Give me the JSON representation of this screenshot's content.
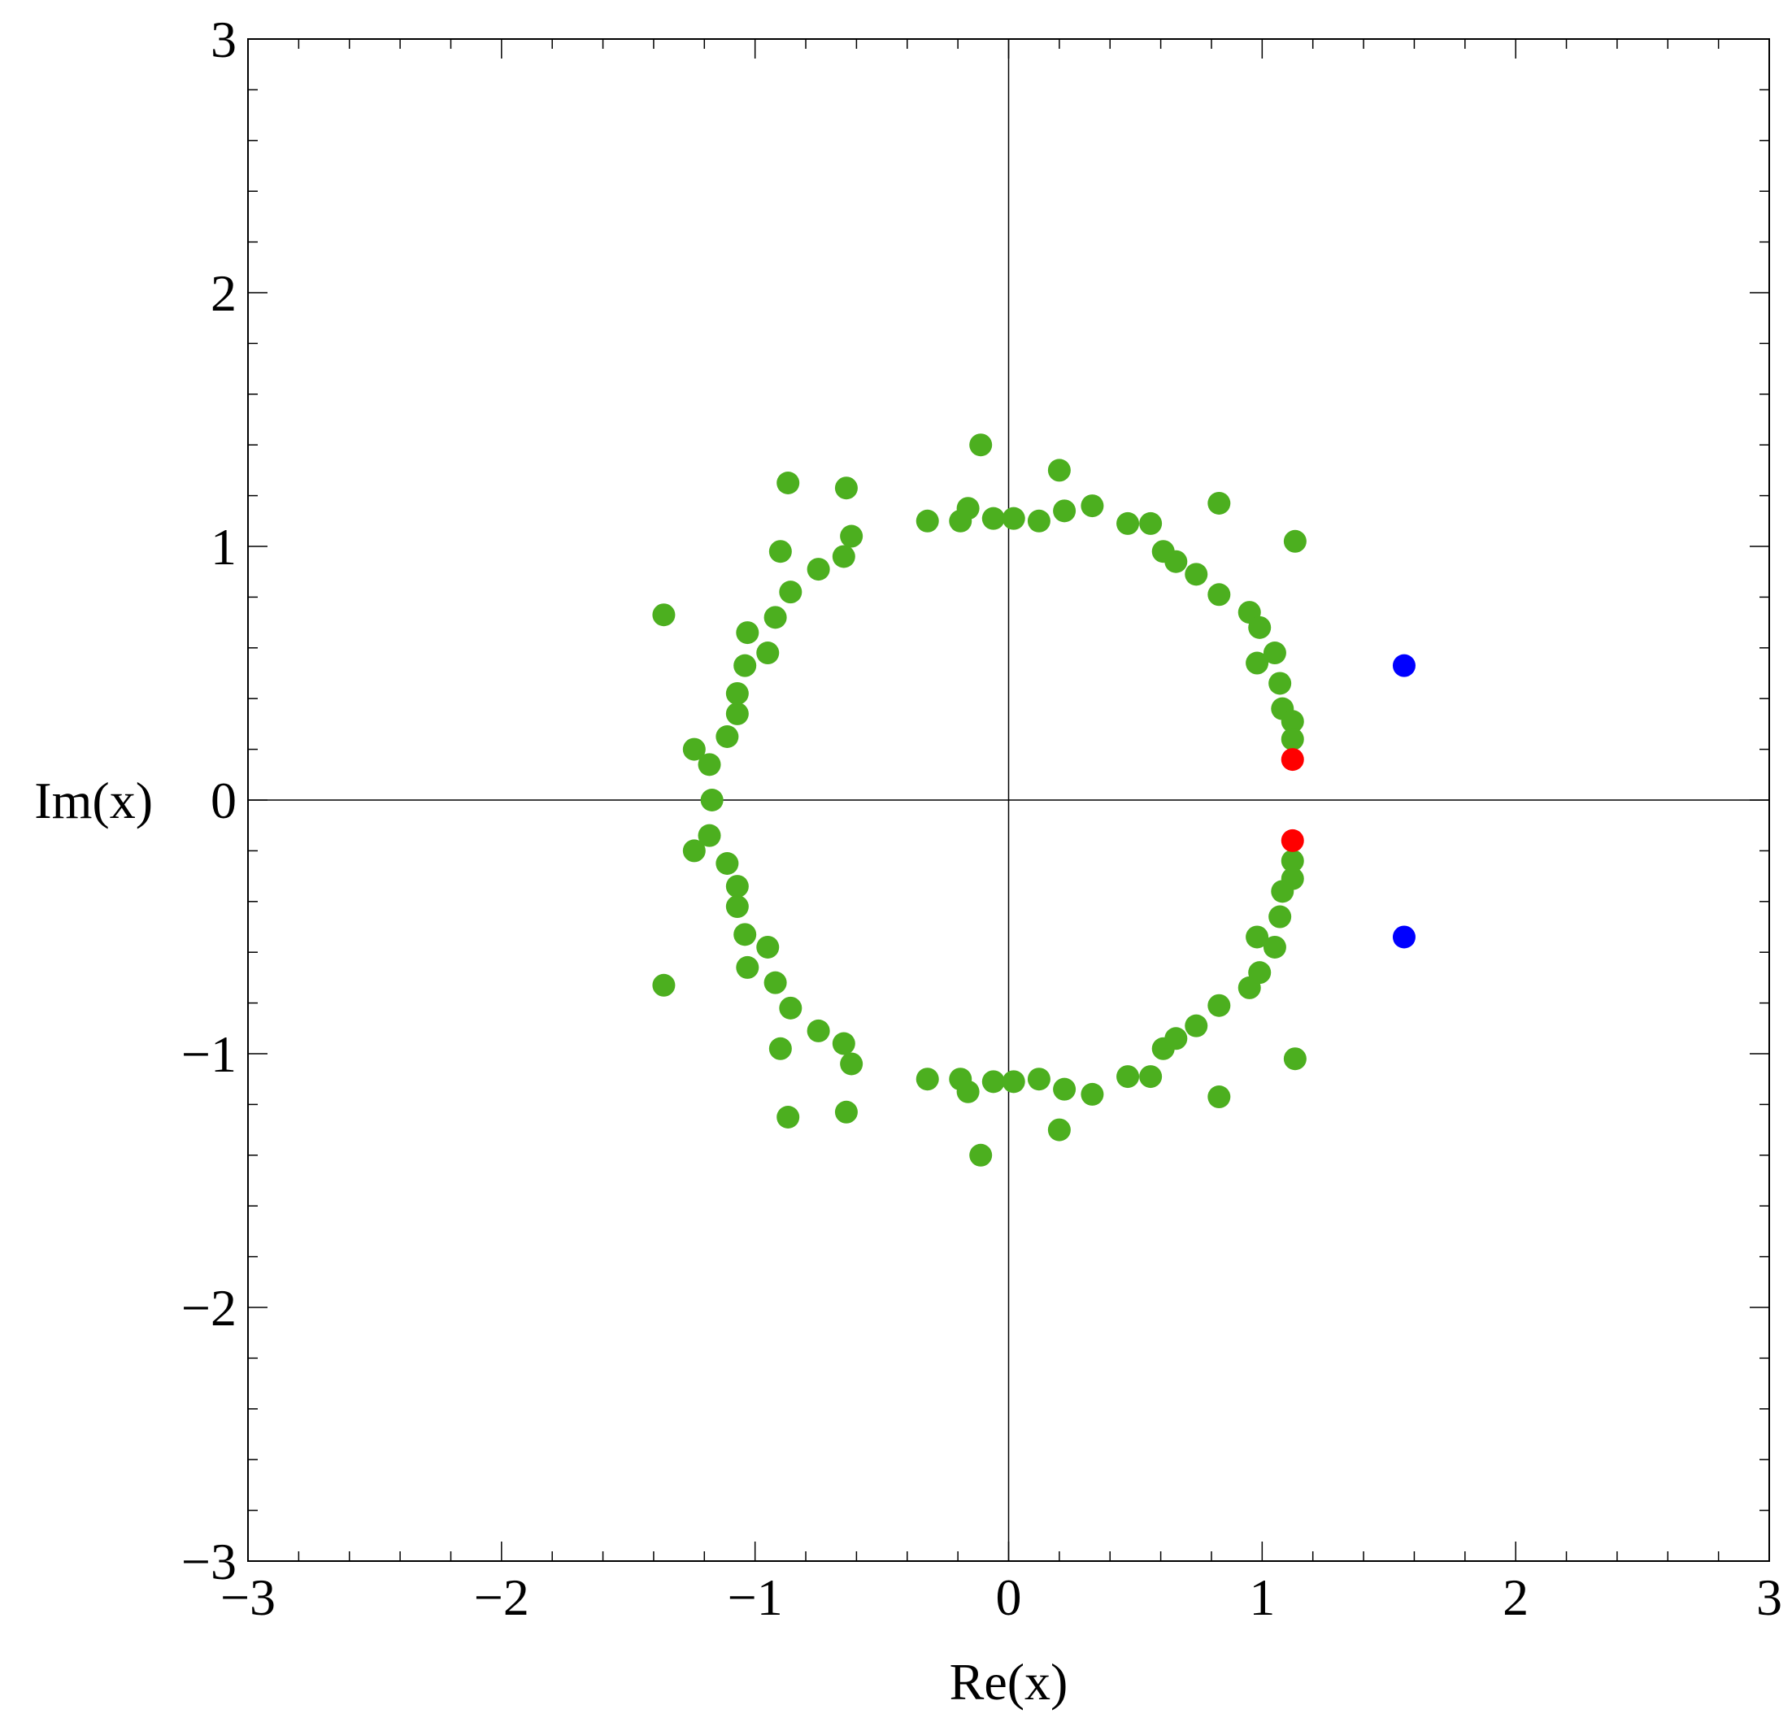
{
  "chart_data": {
    "type": "scatter",
    "title": "",
    "xlabel": "Re(x)",
    "ylabel": "Im(x)",
    "xlim": [
      -3,
      3
    ],
    "ylim": [
      -3,
      3
    ],
    "x_ticks": [
      -3,
      -2,
      -1,
      0,
      1,
      2,
      3
    ],
    "y_ticks": [
      -3,
      -2,
      -1,
      0,
      1,
      2,
      3
    ],
    "x_tick_labels": [
      "−3",
      "−2",
      "−1",
      "0",
      "1",
      "2",
      "3"
    ],
    "y_tick_labels": [
      "−3",
      "−2",
      "−1",
      "0",
      "1",
      "2",
      "3"
    ],
    "grid": false,
    "axes_through_origin": true,
    "legend": "none",
    "series": [
      {
        "color": "#4caf1f",
        "points": [
          [
            -1.36,
            0.73
          ],
          [
            -1.24,
            0.2
          ],
          [
            -1.18,
            0.14
          ],
          [
            -1.17,
            0.0
          ],
          [
            -1.11,
            0.25
          ],
          [
            -1.07,
            0.34
          ],
          [
            -1.07,
            0.42
          ],
          [
            -1.04,
            0.53
          ],
          [
            -1.03,
            0.66
          ],
          [
            -0.95,
            0.58
          ],
          [
            -0.92,
            0.72
          ],
          [
            -0.9,
            0.98
          ],
          [
            -0.86,
            0.82
          ],
          [
            -0.87,
            1.25
          ],
          [
            -0.75,
            0.91
          ],
          [
            -0.65,
            0.96
          ],
          [
            -0.64,
            1.23
          ],
          [
            -0.62,
            1.04
          ],
          [
            -0.32,
            1.1
          ],
          [
            -0.19,
            1.1
          ],
          [
            -0.16,
            1.15
          ],
          [
            -0.11,
            1.4
          ],
          [
            -0.06,
            1.11
          ],
          [
            0.02,
            1.11
          ],
          [
            0.12,
            1.1
          ],
          [
            0.2,
            1.3
          ],
          [
            0.22,
            1.14
          ],
          [
            0.33,
            1.16
          ],
          [
            0.47,
            1.09
          ],
          [
            0.56,
            1.09
          ],
          [
            0.61,
            0.98
          ],
          [
            0.66,
            0.94
          ],
          [
            0.74,
            0.89
          ],
          [
            0.83,
            0.81
          ],
          [
            0.83,
            1.17
          ],
          [
            0.95,
            0.74
          ],
          [
            0.98,
            0.54
          ],
          [
            0.99,
            0.68
          ],
          [
            1.05,
            0.58
          ],
          [
            1.07,
            0.46
          ],
          [
            1.08,
            0.36
          ],
          [
            1.12,
            0.31
          ],
          [
            1.12,
            0.24
          ],
          [
            1.13,
            1.02
          ],
          [
            -1.36,
            -0.73
          ],
          [
            -1.24,
            -0.2
          ],
          [
            -1.18,
            -0.14
          ],
          [
            -1.11,
            -0.25
          ],
          [
            -1.07,
            -0.34
          ],
          [
            -1.07,
            -0.42
          ],
          [
            -1.04,
            -0.53
          ],
          [
            -1.03,
            -0.66
          ],
          [
            -0.95,
            -0.58
          ],
          [
            -0.92,
            -0.72
          ],
          [
            -0.9,
            -0.98
          ],
          [
            -0.86,
            -0.82
          ],
          [
            -0.87,
            -1.25
          ],
          [
            -0.75,
            -0.91
          ],
          [
            -0.65,
            -0.96
          ],
          [
            -0.64,
            -1.23
          ],
          [
            -0.62,
            -1.04
          ],
          [
            -0.32,
            -1.1
          ],
          [
            -0.19,
            -1.1
          ],
          [
            -0.16,
            -1.15
          ],
          [
            -0.11,
            -1.4
          ],
          [
            -0.06,
            -1.11
          ],
          [
            0.02,
            -1.11
          ],
          [
            0.12,
            -1.1
          ],
          [
            0.2,
            -1.3
          ],
          [
            0.22,
            -1.14
          ],
          [
            0.33,
            -1.16
          ],
          [
            0.47,
            -1.09
          ],
          [
            0.56,
            -1.09
          ],
          [
            0.61,
            -0.98
          ],
          [
            0.66,
            -0.94
          ],
          [
            0.74,
            -0.89
          ],
          [
            0.83,
            -0.81
          ],
          [
            0.83,
            -1.17
          ],
          [
            0.95,
            -0.74
          ],
          [
            0.98,
            -0.54
          ],
          [
            0.99,
            -0.68
          ],
          [
            1.05,
            -0.58
          ],
          [
            1.07,
            -0.46
          ],
          [
            1.08,
            -0.36
          ],
          [
            1.12,
            -0.31
          ],
          [
            1.12,
            -0.24
          ],
          [
            1.13,
            -1.02
          ]
        ]
      },
      {
        "color": "#ff0000",
        "points": [
          [
            1.12,
            0.16
          ],
          [
            1.12,
            -0.16
          ]
        ]
      },
      {
        "color": "#0000ff",
        "points": [
          [
            1.56,
            0.53
          ],
          [
            1.56,
            -0.54
          ]
        ]
      }
    ]
  }
}
